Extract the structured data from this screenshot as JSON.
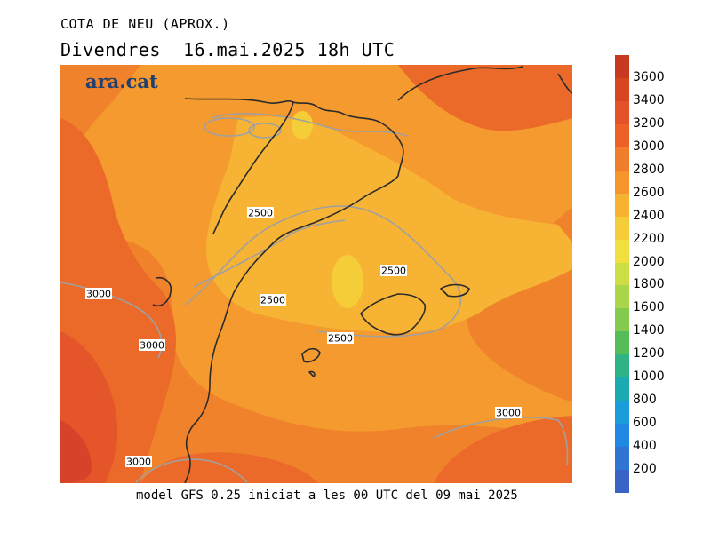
{
  "header": {
    "title": "COTA DE NEU (APROX.)",
    "subtitle": "Divendres  16.mai.2025 18h UTC"
  },
  "logo": {
    "text": "ara.cat"
  },
  "footer": {
    "text": "model GFS 0.25 iniciat a les 00 UTC del 09 mai 2025"
  },
  "colorbar": {
    "labels": [
      "3600",
      "3400",
      "3200",
      "3000",
      "2800",
      "2600",
      "2400",
      "2200",
      "2000",
      "1800",
      "1600",
      "1400",
      "1200",
      "1000",
      "800",
      "600",
      "400",
      "200"
    ],
    "colors": [
      "#c83a1f",
      "#d8461f",
      "#e5522a",
      "#ed6027",
      "#f07d2b",
      "#f6952b",
      "#f8b231",
      "#f5cd38",
      "#efe040",
      "#cdde44",
      "#a9d64a",
      "#84ca4f",
      "#55bd58",
      "#2fb284",
      "#1aaab0",
      "#1c9ddb",
      "#2087e2",
      "#3074d3",
      "#3a63c6"
    ]
  },
  "map": {
    "contour_labels": [
      {
        "id": "c2500-north",
        "text": "2500"
      },
      {
        "id": "c2500-center",
        "text": "2500"
      },
      {
        "id": "c2500-east",
        "text": "2500"
      },
      {
        "id": "c2500-south",
        "text": "2500"
      },
      {
        "id": "c3000-west",
        "text": "3000"
      },
      {
        "id": "c3000-sw",
        "text": "3000"
      },
      {
        "id": "c3000-bottom",
        "text": "3000"
      },
      {
        "id": "c3000-se",
        "text": "3000"
      }
    ],
    "fill_colors": {
      "c2400": "#f7b333",
      "c2600": "#f59a2e",
      "c2800": "#f0822b",
      "c3000": "#ec6a29",
      "c3200": "#e4552a",
      "c3400": "#d6432a",
      "c2200": "#f5cd38"
    }
  }
}
